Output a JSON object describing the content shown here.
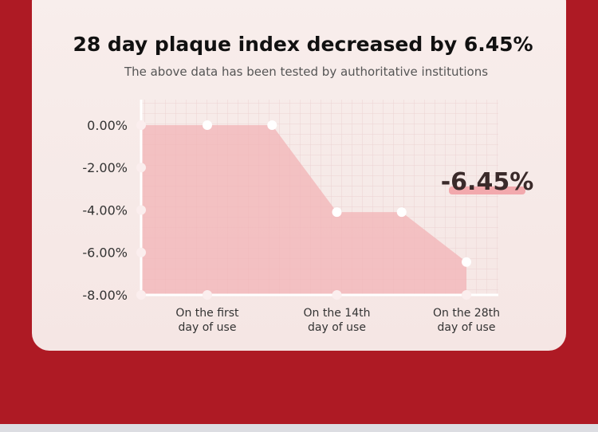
{
  "chart_data": {
    "type": "area",
    "title": "28 day plaque index decreased by 6.45%",
    "subtitle": "The above data has been tested by authoritative institutions",
    "annotation": "-6.45%",
    "categories": [
      "On the first\nday of use",
      null,
      "On the 14th\nday of use",
      null,
      "On the  28th\nday of use"
    ],
    "values": [
      0,
      0,
      -4.1,
      -4.1,
      -6.45
    ],
    "color": "#f2b3b5",
    "ylim": [
      -8,
      1.2
    ],
    "yticks": [
      {
        "value": 0,
        "label": "0.00%"
      },
      {
        "value": -2,
        "label": "-2.00%"
      },
      {
        "value": -4,
        "label": "-4.00%"
      },
      {
        "value": -6,
        "label": "-6.00%"
      },
      {
        "value": -8,
        "label": "-8.00%"
      }
    ],
    "grid": true
  }
}
